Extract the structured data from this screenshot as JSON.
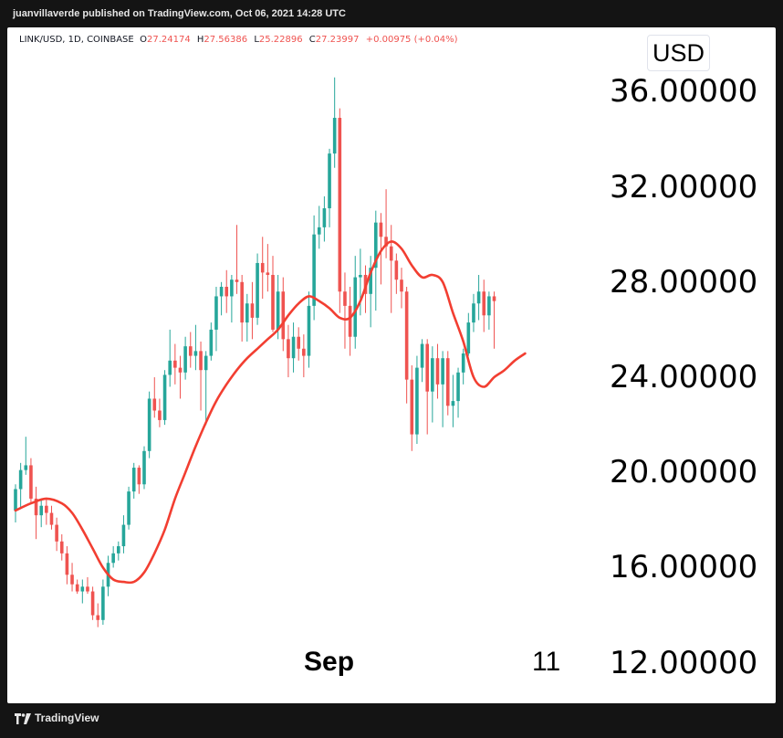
{
  "header": {
    "publisher": "juanvillaverde published on TradingView.com, Oct 06, 2021 14:28 UTC"
  },
  "legend": {
    "symbol": "LINK/USD, 1D, COINBASE",
    "open_label": "O",
    "open": "27.24174",
    "high_label": "H",
    "high": "27.56386",
    "low_label": "L",
    "low": "25.22896",
    "close_label": "C",
    "close": "27.23997",
    "change": "+0.00975 (+0.04%)"
  },
  "currency": "USD",
  "footer": {
    "brand": "TradingView"
  },
  "colors": {
    "up": "#26a69a",
    "down": "#ef5350",
    "ma_line": "#f23e31",
    "background": "#ffffff"
  },
  "chart_data": {
    "type": "candlestick",
    "y_axis": {
      "ticks": [
        "36.00000",
        "32.00000",
        "28.00000",
        "24.00000",
        "20.00000",
        "16.00000",
        "12.00000"
      ],
      "tick_values": [
        36,
        32,
        28,
        24,
        20,
        16,
        12
      ],
      "range": [
        10.3,
        38.7
      ],
      "side": "right"
    },
    "x_axis": {
      "ticks": [
        "Sep",
        "11"
      ],
      "tick_bar_index": [
        63,
        101
      ]
    },
    "candles_ohlc": [
      [
        18.4,
        19.5,
        17.9,
        19.3
      ],
      [
        19.3,
        20.4,
        18.5,
        20.1
      ],
      [
        20.1,
        21.5,
        19.9,
        20.3
      ],
      [
        20.3,
        20.6,
        18.7,
        18.9
      ],
      [
        18.9,
        19.4,
        17.2,
        18.2
      ],
      [
        18.2,
        18.9,
        17.7,
        18.6
      ],
      [
        18.6,
        18.9,
        17.8,
        18.3
      ],
      [
        18.3,
        18.6,
        17.6,
        17.8
      ],
      [
        17.8,
        18.1,
        16.7,
        17.1
      ],
      [
        17.1,
        17.4,
        16.3,
        16.6
      ],
      [
        16.6,
        16.9,
        15.3,
        15.7
      ],
      [
        15.7,
        16.2,
        15.0,
        15.3
      ],
      [
        15.3,
        15.5,
        14.9,
        15.0
      ],
      [
        15.0,
        15.5,
        14.5,
        15.2
      ],
      [
        15.2,
        15.6,
        14.9,
        15.0
      ],
      [
        15.0,
        15.2,
        13.8,
        14.0
      ],
      [
        14.0,
        14.5,
        13.5,
        13.8
      ],
      [
        13.8,
        15.5,
        13.6,
        15.2
      ],
      [
        15.2,
        16.5,
        14.8,
        16.2
      ],
      [
        16.2,
        16.9,
        16.0,
        16.6
      ],
      [
        16.6,
        17.1,
        16.3,
        16.9
      ],
      [
        16.9,
        18.2,
        16.6,
        17.8
      ],
      [
        17.8,
        19.4,
        17.6,
        19.2
      ],
      [
        19.2,
        20.4,
        18.9,
        20.2
      ],
      [
        20.2,
        20.3,
        19.1,
        19.5
      ],
      [
        19.5,
        21.1,
        19.3,
        20.9
      ],
      [
        20.9,
        23.4,
        20.6,
        23.1
      ],
      [
        23.1,
        24.0,
        22.3,
        22.6
      ],
      [
        22.6,
        23.1,
        21.9,
        22.2
      ],
      [
        22.2,
        24.3,
        22.0,
        24.1
      ],
      [
        24.1,
        26.0,
        23.6,
        24.7
      ],
      [
        24.7,
        25.4,
        23.7,
        24.4
      ],
      [
        24.4,
        24.9,
        23.1,
        24.2
      ],
      [
        24.2,
        25.7,
        23.9,
        25.3
      ],
      [
        25.3,
        25.9,
        24.4,
        24.9
      ],
      [
        24.9,
        26.2,
        24.3,
        25.1
      ],
      [
        25.1,
        25.5,
        22.6,
        24.3
      ],
      [
        24.3,
        25.1,
        22.0,
        24.9
      ],
      [
        24.9,
        26.3,
        24.7,
        26.0
      ],
      [
        26.0,
        27.8,
        25.1,
        27.4
      ],
      [
        27.4,
        28.0,
        26.6,
        27.8
      ],
      [
        27.8,
        28.5,
        26.7,
        27.4
      ],
      [
        27.4,
        28.3,
        26.3,
        28.1
      ],
      [
        28.1,
        30.4,
        27.5,
        28.0
      ],
      [
        28.0,
        28.3,
        25.5,
        26.3
      ],
      [
        26.3,
        27.5,
        25.5,
        27.1
      ],
      [
        27.1,
        28.0,
        25.6,
        26.5
      ],
      [
        26.5,
        29.2,
        26.2,
        28.8
      ],
      [
        28.8,
        29.9,
        27.3,
        28.4
      ],
      [
        28.4,
        29.6,
        27.6,
        28.3
      ],
      [
        28.3,
        29.1,
        25.9,
        26.0
      ],
      [
        26.0,
        28.3,
        25.6,
        27.6
      ],
      [
        27.6,
        28.2,
        25.1,
        25.6
      ],
      [
        25.6,
        26.2,
        24.0,
        24.8
      ],
      [
        24.8,
        26.3,
        24.2,
        25.7
      ],
      [
        25.7,
        26.1,
        24.7,
        25.2
      ],
      [
        25.2,
        25.8,
        24.0,
        24.9
      ],
      [
        24.9,
        27.6,
        24.4,
        27.0
      ],
      [
        27.0,
        30.8,
        26.4,
        30.0
      ],
      [
        30.0,
        31.2,
        29.4,
        30.3
      ],
      [
        30.3,
        31.6,
        29.7,
        31.1
      ],
      [
        31.1,
        33.6,
        30.3,
        33.4
      ],
      [
        33.4,
        36.6,
        32.8,
        34.9
      ],
      [
        34.9,
        35.3,
        26.7,
        27.6
      ],
      [
        27.6,
        28.4,
        25.2,
        27.0
      ],
      [
        27.0,
        27.8,
        24.9,
        25.7
      ],
      [
        25.7,
        29.1,
        25.2,
        28.2
      ],
      [
        28.2,
        29.4,
        26.6,
        28.3
      ],
      [
        28.3,
        28.7,
        26.7,
        27.5
      ],
      [
        27.5,
        29.1,
        26.1,
        28.6
      ],
      [
        28.6,
        31.0,
        26.8,
        30.5
      ],
      [
        30.5,
        30.9,
        27.9,
        29.9
      ],
      [
        29.9,
        31.9,
        29.0,
        29.5
      ],
      [
        29.5,
        30.4,
        26.7,
        28.9
      ],
      [
        28.9,
        29.2,
        27.5,
        28.1
      ],
      [
        28.1,
        28.6,
        26.9,
        27.6
      ],
      [
        27.6,
        27.8,
        22.9,
        23.9
      ],
      [
        23.9,
        24.5,
        20.9,
        21.6
      ],
      [
        21.6,
        24.9,
        21.2,
        24.4
      ],
      [
        24.4,
        25.6,
        23.8,
        25.4
      ],
      [
        25.4,
        25.6,
        21.6,
        23.4
      ],
      [
        23.4,
        25.3,
        22.1,
        24.8
      ],
      [
        24.8,
        25.4,
        23.1,
        23.7
      ],
      [
        23.7,
        25.1,
        21.9,
        24.8
      ],
      [
        24.8,
        25.1,
        22.4,
        22.8
      ],
      [
        22.8,
        24.1,
        21.9,
        23.0
      ],
      [
        23.0,
        24.4,
        22.3,
        24.2
      ],
      [
        24.2,
        25.2,
        23.7,
        25.0
      ],
      [
        25.0,
        26.7,
        24.9,
        26.3
      ],
      [
        26.3,
        27.5,
        25.9,
        27.1
      ],
      [
        27.1,
        28.3,
        26.4,
        27.6
      ],
      [
        27.6,
        28.1,
        25.9,
        26.6
      ],
      [
        26.6,
        27.6,
        26.0,
        27.4
      ],
      [
        27.4,
        27.6,
        25.2,
        27.2
      ]
    ],
    "moving_average": [
      [
        0,
        18.4
      ],
      [
        3,
        18.7
      ],
      [
        6,
        18.9
      ],
      [
        9,
        18.7
      ],
      [
        11,
        18.3
      ],
      [
        13,
        17.6
      ],
      [
        15,
        16.8
      ],
      [
        17,
        16.0
      ],
      [
        19,
        15.5
      ],
      [
        21,
        15.4
      ],
      [
        23,
        15.4
      ],
      [
        25,
        15.8
      ],
      [
        27,
        16.6
      ],
      [
        29,
        17.6
      ],
      [
        31,
        18.9
      ],
      [
        33,
        20.0
      ],
      [
        35,
        21.1
      ],
      [
        37,
        22.1
      ],
      [
        39,
        23.0
      ],
      [
        41,
        23.7
      ],
      [
        43,
        24.3
      ],
      [
        45,
        24.8
      ],
      [
        47,
        25.2
      ],
      [
        49,
        25.6
      ],
      [
        51,
        26.0
      ],
      [
        53,
        26.6
      ],
      [
        55,
        27.1
      ],
      [
        57,
        27.4
      ],
      [
        59,
        27.2
      ],
      [
        61,
        26.9
      ],
      [
        63,
        26.5
      ],
      [
        65,
        26.5
      ],
      [
        67,
        27.2
      ],
      [
        69,
        28.4
      ],
      [
        71,
        29.3
      ],
      [
        73,
        29.7
      ],
      [
        75,
        29.4
      ],
      [
        77,
        28.7
      ],
      [
        79,
        28.2
      ],
      [
        81,
        28.3
      ],
      [
        83,
        28.0
      ],
      [
        85,
        26.7
      ],
      [
        87,
        25.5
      ],
      [
        89,
        24.0
      ],
      [
        91,
        23.6
      ],
      [
        93,
        24.0
      ],
      [
        95,
        24.3
      ],
      [
        97,
        24.7
      ],
      [
        99,
        25.0
      ]
    ]
  }
}
